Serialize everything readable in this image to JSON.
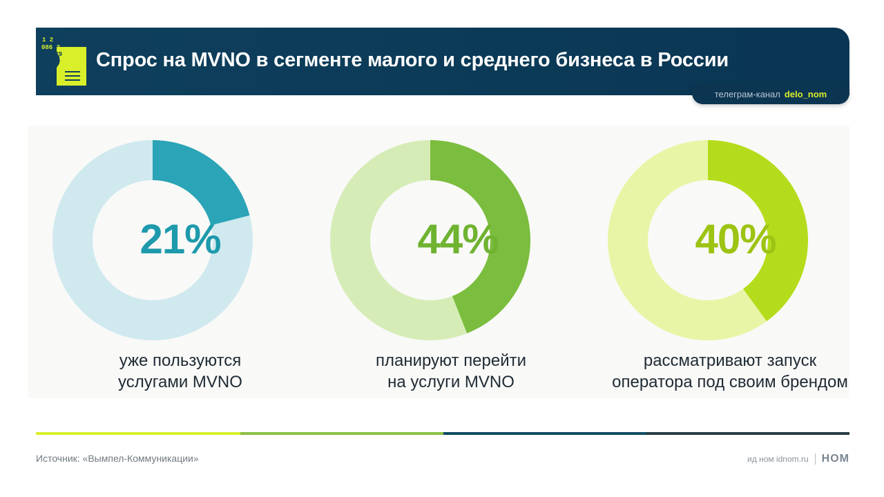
{
  "header": {
    "title": "Спрос на MVNO в сегменте малого и среднего бизнеса в России",
    "channel_prefix": "телеграм-канал",
    "channel_handle": "delo_nom"
  },
  "logo": {
    "digits": [
      "1 2",
      "086 3",
      "579",
      "4"
    ]
  },
  "chart_data": {
    "type": "pie",
    "variant": "donut",
    "items": [
      {
        "value": 21,
        "label": "21%",
        "caption_line1": "уже пользуются",
        "caption_line2": "услугами MVNO",
        "color": "#2aa4b6",
        "rest_color": "#cfe9ef",
        "text_color": "#1e9aac"
      },
      {
        "value": 44,
        "label": "44%",
        "caption_line1": "планируют перейти",
        "caption_line2": "на услуги MVNO",
        "color": "#7bbd3e",
        "rest_color": "#d6ecb6",
        "text_color": "#6fb331"
      },
      {
        "value": 40,
        "label": "40%",
        "caption_line1": "рассматривают запуск",
        "caption_line2": "оператора под своим брендом",
        "color": "#b5dc1c",
        "rest_color": "#e9f5a6",
        "text_color": "#9dc313"
      }
    ]
  },
  "footer": {
    "source": "Источник: «Вымпел-Коммуникации»",
    "brand_text": "ид ном idnom.ru",
    "brand_logo": "НОМ",
    "bar_colors": [
      "#d8ef2a",
      "#8bc045",
      "#0f4c63",
      "#2a3a44"
    ]
  }
}
